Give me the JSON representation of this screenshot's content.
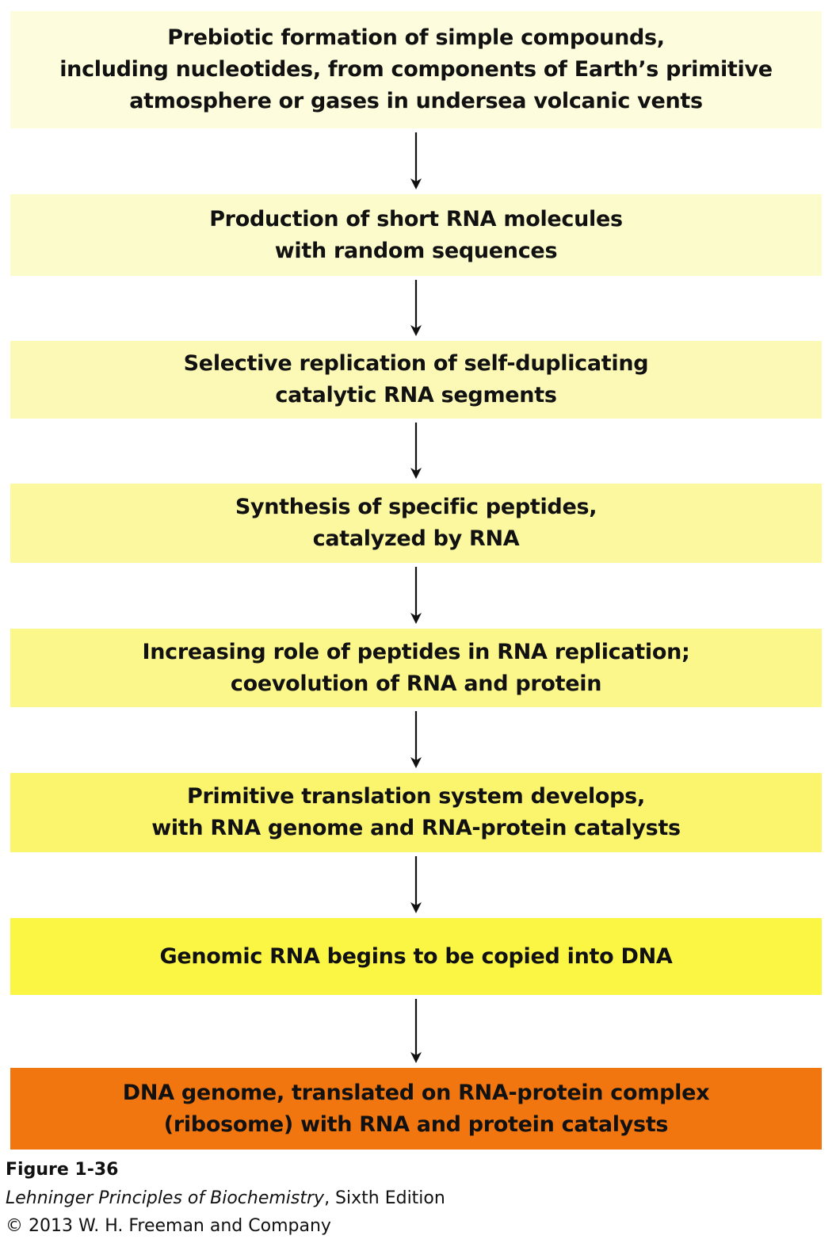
{
  "steps": [
    {
      "text": "Prebiotic formation of simple compounds,\nincluding nucleotides, from components of Earth’s primitive\natmosphere or gases in undersea volcanic vents",
      "color": "#fdfcdc"
    },
    {
      "text": "Production of short RNA molecules\nwith random sequences",
      "color": "#fcfbcb"
    },
    {
      "text": "Selective replication of self-duplicating\ncatalytic RNA segments",
      "color": "#fcf9b6"
    },
    {
      "text": "Synthesis of specific peptides,\ncatalyzed by RNA",
      "color": "#fcf8a0"
    },
    {
      "text": "Increasing role of peptides in RNA replication;\ncoevolution of RNA and protein",
      "color": "#fcf78a"
    },
    {
      "text": "Primitive translation system develops,\nwith RNA genome and RNA-protein catalysts",
      "color": "#fbf56d"
    },
    {
      "text": "Genomic RNA begins to be copied into DNA",
      "color": "#fbf543"
    },
    {
      "text": "DNA genome, translated on RNA-protein complex\n(ribosome) with RNA and protein catalysts",
      "color": "#f1760f"
    }
  ],
  "caption": {
    "figure": "Figure 1-36",
    "book": "Lehninger Principles of Biochemistry",
    "edition": ", Sixth Edition",
    "copyright": "© 2013 W. H. Freeman and Company"
  }
}
